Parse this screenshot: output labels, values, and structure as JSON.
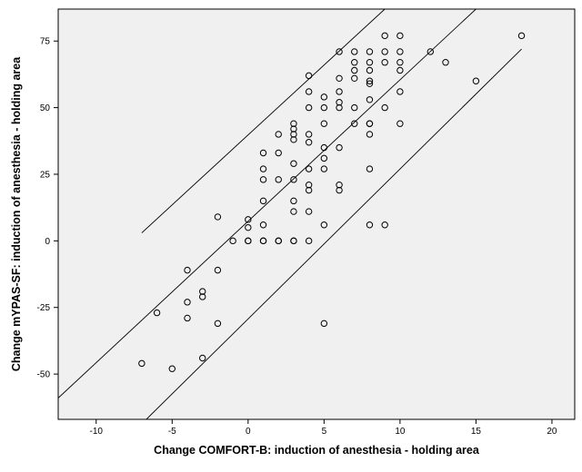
{
  "chart_data": {
    "type": "scatter",
    "title": "",
    "xlabel": "Change COMFORT-B: induction of anesthesia - holding area",
    "ylabel": "Change mYPAS-SF: induction of anesthesia - holding area",
    "xlim": [
      -12.5,
      21.5
    ],
    "ylim": [
      -67,
      87
    ],
    "x_ticks": [
      -10,
      -5,
      0,
      5,
      10,
      15,
      20
    ],
    "y_ticks": [
      -50,
      -25,
      0,
      25,
      50,
      75
    ],
    "grid": false,
    "legend": "none",
    "plot_background": "#f0f0f0",
    "marker_color": "#000000",
    "series": [
      {
        "marker": "open-circle",
        "points": [
          [
            -7,
            -46
          ],
          [
            -6,
            -27
          ],
          [
            -5,
            -48
          ],
          [
            -4,
            -11
          ],
          [
            -4,
            -23
          ],
          [
            -4,
            -29
          ],
          [
            -3,
            -19
          ],
          [
            -3,
            -21
          ],
          [
            -3,
            -44
          ],
          [
            -2,
            9
          ],
          [
            -2,
            -11
          ],
          [
            -2,
            -31
          ],
          [
            -1,
            0
          ],
          [
            0,
            8
          ],
          [
            0,
            5
          ],
          [
            0,
            0
          ],
          [
            0,
            0
          ],
          [
            1,
            33
          ],
          [
            1,
            27
          ],
          [
            1,
            23
          ],
          [
            1,
            15
          ],
          [
            1,
            6
          ],
          [
            1,
            0
          ],
          [
            1,
            0
          ],
          [
            2,
            40
          ],
          [
            2,
            33
          ],
          [
            2,
            23
          ],
          [
            2,
            0
          ],
          [
            2,
            0
          ],
          [
            3,
            44
          ],
          [
            3,
            42
          ],
          [
            3,
            40
          ],
          [
            3,
            38
          ],
          [
            3,
            29
          ],
          [
            3,
            23
          ],
          [
            3,
            15
          ],
          [
            3,
            11
          ],
          [
            3,
            0
          ],
          [
            3,
            0
          ],
          [
            4,
            62
          ],
          [
            4,
            56
          ],
          [
            4,
            50
          ],
          [
            4,
            40
          ],
          [
            4,
            37
          ],
          [
            4,
            27
          ],
          [
            4,
            21
          ],
          [
            4,
            19
          ],
          [
            4,
            11
          ],
          [
            4,
            0
          ],
          [
            5,
            54
          ],
          [
            5,
            50
          ],
          [
            5,
            44
          ],
          [
            5,
            35
          ],
          [
            5,
            31
          ],
          [
            5,
            27
          ],
          [
            5,
            6
          ],
          [
            5,
            -31
          ],
          [
            6,
            71
          ],
          [
            6,
            61
          ],
          [
            6,
            56
          ],
          [
            6,
            52
          ],
          [
            6,
            50
          ],
          [
            6,
            35
          ],
          [
            6,
            21
          ],
          [
            6,
            19
          ],
          [
            7,
            71
          ],
          [
            7,
            67
          ],
          [
            7,
            64
          ],
          [
            7,
            61
          ],
          [
            7,
            50
          ],
          [
            7,
            44
          ],
          [
            8,
            71
          ],
          [
            8,
            67
          ],
          [
            8,
            64
          ],
          [
            8,
            60
          ],
          [
            8,
            59
          ],
          [
            8,
            53
          ],
          [
            8,
            44
          ],
          [
            8,
            44
          ],
          [
            8,
            40
          ],
          [
            8,
            27
          ],
          [
            8,
            6
          ],
          [
            9,
            77
          ],
          [
            9,
            71
          ],
          [
            9,
            67
          ],
          [
            9,
            50
          ],
          [
            9,
            6
          ],
          [
            10,
            77
          ],
          [
            10,
            71
          ],
          [
            10,
            67
          ],
          [
            10,
            64
          ],
          [
            10,
            56
          ],
          [
            10,
            44
          ],
          [
            12,
            71
          ],
          [
            13,
            67
          ],
          [
            15,
            60
          ],
          [
            18,
            77
          ]
        ]
      }
    ],
    "reference_lines": [
      {
        "name": "upper",
        "from": [
          -7,
          3
        ],
        "to": [
          9,
          87
        ]
      },
      {
        "name": "fit",
        "from": [
          -12.5,
          -59
        ],
        "to": [
          15,
          87
        ]
      },
      {
        "name": "lower",
        "from": [
          -6.7,
          -67
        ],
        "to": [
          18,
          72
        ]
      }
    ]
  }
}
